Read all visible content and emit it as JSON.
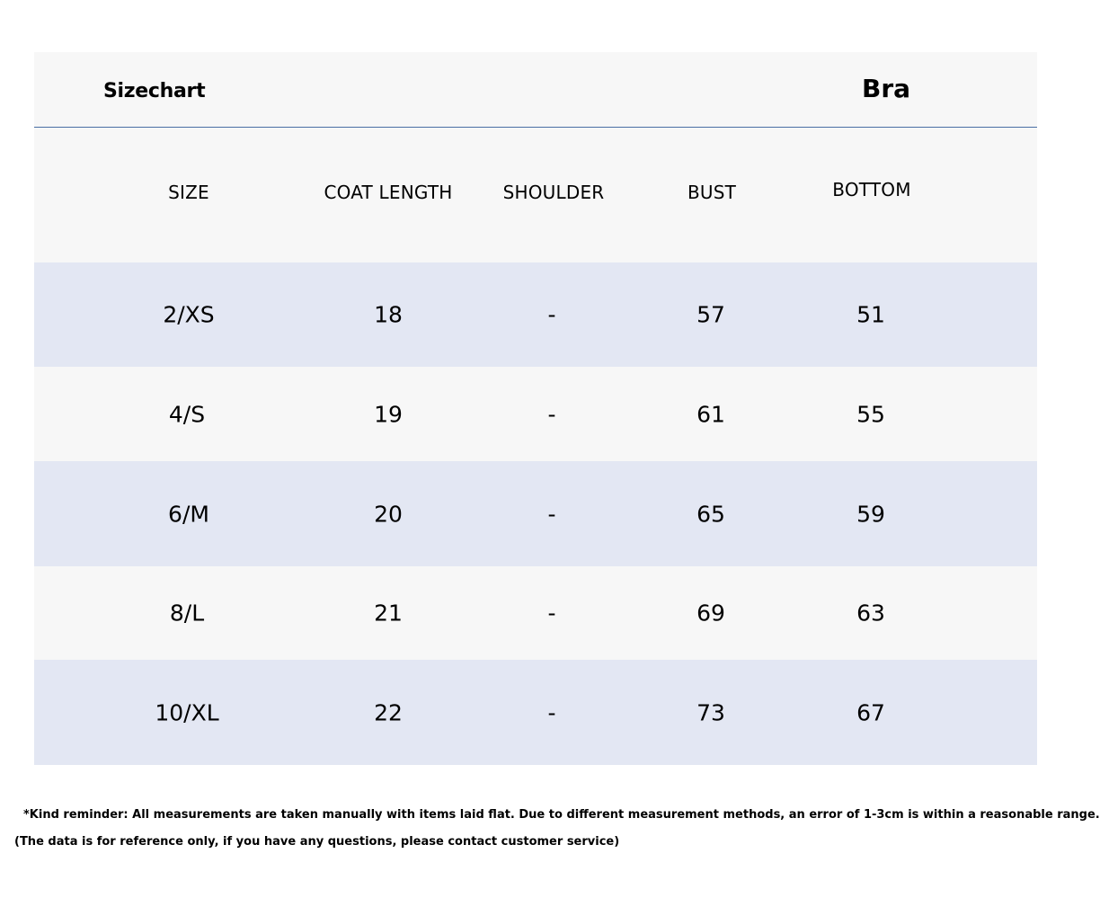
{
  "header": {
    "title": "Sizechart",
    "product": "Bra"
  },
  "table": {
    "columns": [
      "SIZE",
      "COAT LENGTH",
      "SHOULDER",
      "BUST",
      "BOTTOM"
    ],
    "rows": [
      [
        "2/XS",
        "18",
        "-",
        "57",
        "51"
      ],
      [
        "4/S",
        "19",
        "-",
        "61",
        "55"
      ],
      [
        "6/M",
        "20",
        "-",
        "65",
        "59"
      ],
      [
        "8/L",
        "21",
        "-",
        "69",
        "63"
      ],
      [
        "10/XL",
        "22",
        "-",
        "73",
        "67"
      ]
    ]
  },
  "notes": {
    "reminder": "*Kind reminder: All measurements are taken manually with items laid flat. Due to different measurement methods, an error of 1-3cm is within a reasonable range.",
    "disclaimer": "(The data is for reference only, if you have any questions, please contact customer service)"
  },
  "colors": {
    "card_background": "#f7f7f7",
    "row_shade": "#e3e7f3",
    "divider": "#4a6fa5"
  }
}
